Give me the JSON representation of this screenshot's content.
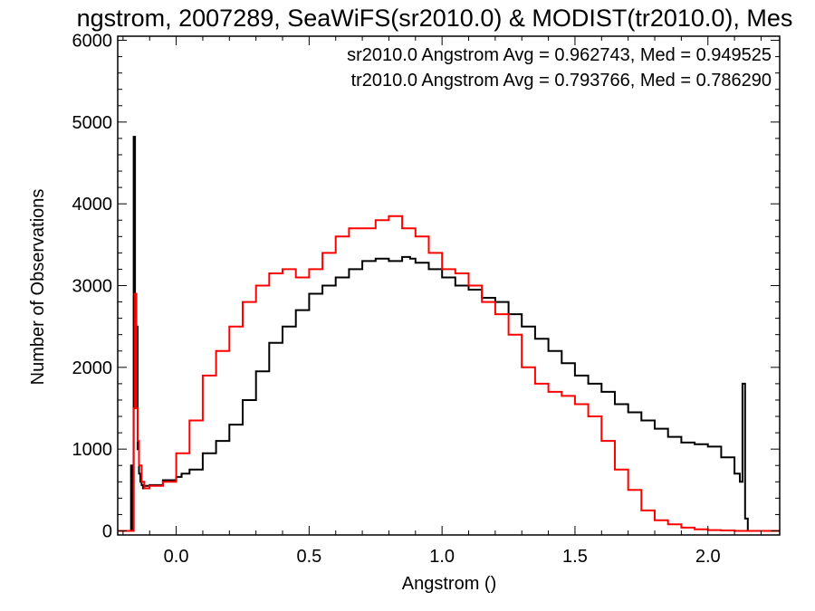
{
  "chart_data": {
    "type": "line",
    "title": "ngstrom, 2007289, SeaWiFS(sr2010.0) & MODIST(tr2010.0), Mes",
    "xlabel": "Angstrom ()",
    "ylabel": "Number of Observations",
    "xlim": [
      -0.22,
      2.27
    ],
    "ylim": [
      -50,
      6050
    ],
    "x_ticks": [
      0.0,
      0.5,
      1.0,
      1.5,
      2.0
    ],
    "x_tick_labels": [
      "0.0",
      "0.5",
      "1.0",
      "1.5",
      "2.0"
    ],
    "y_ticks": [
      0,
      1000,
      2000,
      3000,
      4000,
      5000,
      6000
    ],
    "y_tick_labels": [
      "0",
      "1000",
      "2000",
      "3000",
      "4000",
      "5000",
      "6000"
    ],
    "grid": false,
    "legend_position": "top-right",
    "step_style": "histogram",
    "annotations": [
      {
        "text": "sr2010.0 Angstrom Avg = 0.962743, Med = 0.949525",
        "color": "#000000"
      },
      {
        "text": "tr2010.0 Angstrom Avg = 0.793766, Med = 0.786290",
        "color": "#ff0000"
      }
    ],
    "series": [
      {
        "color": "#000000",
        "x": [
          -0.22,
          -0.17,
          -0.165,
          -0.16,
          -0.155,
          -0.15,
          -0.145,
          -0.14,
          -0.135,
          -0.13,
          -0.125,
          -0.12,
          -0.1,
          -0.05,
          0.0,
          0.02,
          0.05,
          0.1,
          0.15,
          0.2,
          0.25,
          0.3,
          0.35,
          0.4,
          0.45,
          0.5,
          0.55,
          0.6,
          0.65,
          0.7,
          0.75,
          0.8,
          0.85,
          0.88,
          0.9,
          0.95,
          1.0,
          1.05,
          1.1,
          1.15,
          1.2,
          1.25,
          1.3,
          1.35,
          1.4,
          1.45,
          1.5,
          1.55,
          1.6,
          1.65,
          1.7,
          1.75,
          1.8,
          1.85,
          1.9,
          1.95,
          2.0,
          2.05,
          2.1,
          2.12,
          2.13,
          2.14,
          2.15,
          2.16,
          2.27
        ],
        "y": [
          0,
          800,
          0,
          4820,
          1500,
          2500,
          1000,
          700,
          600,
          560,
          520,
          550,
          560,
          620,
          660,
          700,
          750,
          950,
          1100,
          1300,
          1600,
          1950,
          2300,
          2500,
          2700,
          2900,
          3000,
          3100,
          3200,
          3300,
          3330,
          3300,
          3350,
          3330,
          3280,
          3200,
          3100,
          3000,
          2950,
          2850,
          2800,
          2650,
          2500,
          2350,
          2200,
          2050,
          1900,
          1800,
          1700,
          1550,
          1450,
          1350,
          1250,
          1150,
          1080,
          1060,
          1030,
          900,
          700,
          600,
          1800,
          150,
          0,
          0,
          0
        ]
      },
      {
        "color": "#ff0000",
        "x": [
          -0.22,
          -0.17,
          -0.16,
          -0.155,
          -0.15,
          -0.145,
          -0.14,
          -0.13,
          -0.12,
          -0.1,
          -0.05,
          0.0,
          0.05,
          0.1,
          0.15,
          0.2,
          0.25,
          0.3,
          0.35,
          0.4,
          0.45,
          0.5,
          0.55,
          0.6,
          0.65,
          0.7,
          0.75,
          0.8,
          0.85,
          0.9,
          0.95,
          1.0,
          1.05,
          1.1,
          1.15,
          1.2,
          1.25,
          1.3,
          1.35,
          1.4,
          1.45,
          1.5,
          1.55,
          1.6,
          1.65,
          1.7,
          1.75,
          1.8,
          1.85,
          1.9,
          1.95,
          2.0,
          2.05,
          2.1,
          2.15,
          2.2,
          2.27
        ],
        "y": [
          0,
          0,
          1500,
          2900,
          1500,
          1100,
          800,
          600,
          520,
          550,
          600,
          950,
          1350,
          1900,
          2200,
          2500,
          2800,
          3000,
          3150,
          3200,
          3100,
          3200,
          3400,
          3600,
          3700,
          3700,
          3800,
          3850,
          3700,
          3600,
          3400,
          3200,
          3150,
          3000,
          2800,
          2650,
          2400,
          2000,
          1800,
          1700,
          1650,
          1550,
          1400,
          1100,
          750,
          500,
          250,
          130,
          80,
          40,
          20,
          10,
          5,
          0,
          0,
          0,
          0
        ]
      }
    ]
  }
}
